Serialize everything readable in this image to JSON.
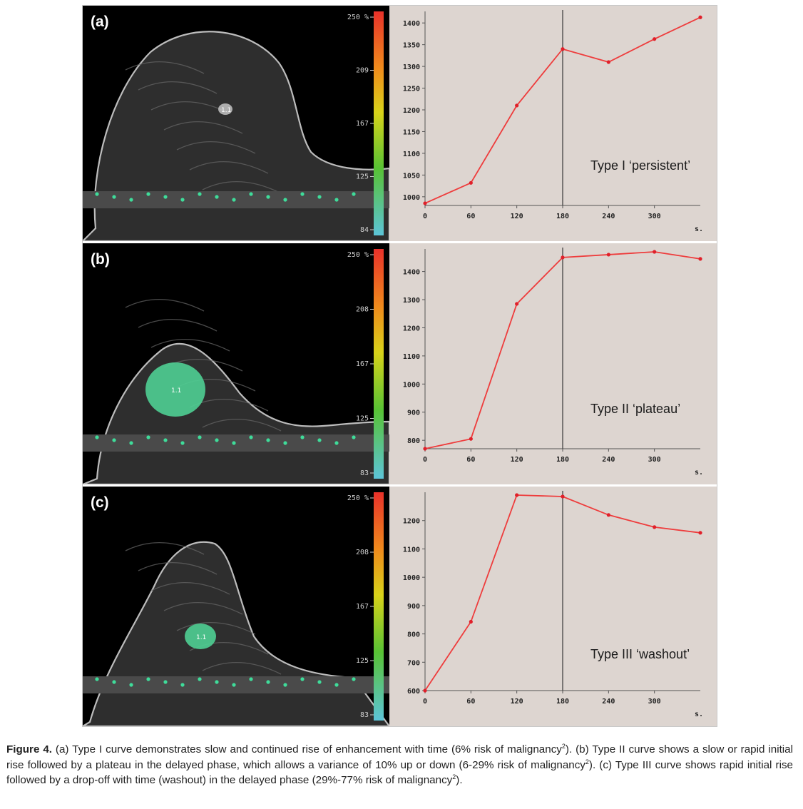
{
  "figure": {
    "panels": [
      {
        "label": "(a)",
        "type_label": "Type I ‘persistent’",
        "colorbar_ticks": [
          "250 %",
          "209",
          "167",
          "125",
          "84"
        ],
        "enhanced_fraction": 0.02,
        "lesion_marker": "1.1"
      },
      {
        "label": "(b)",
        "type_label": "Type II ‘plateau’",
        "colorbar_ticks": [
          "250 %",
          "208",
          "167",
          "125",
          "83"
        ],
        "enhanced_fraction": 0.35,
        "lesion_marker": "1.1"
      },
      {
        "label": "(c)",
        "type_label": "Type III ‘washout’",
        "colorbar_ticks": [
          "250 %",
          "208",
          "167",
          "125",
          "83"
        ],
        "enhanced_fraction": 0.2,
        "lesion_marker": "1.1"
      }
    ]
  },
  "chart_data": [
    {
      "type": "line",
      "x": [
        0,
        60,
        120,
        180,
        240,
        300,
        360
      ],
      "y": [
        985,
        1032,
        1210,
        1340,
        1310,
        1363,
        1413
      ],
      "xticks": [
        "0",
        "60",
        "120",
        "180",
        "240",
        "300"
      ],
      "xunit": "s.",
      "yticks": [
        "1000",
        "1050",
        "1100",
        "1150",
        "1200",
        "1250",
        "1300",
        "1350",
        "1400"
      ],
      "xlim": [
        0,
        360
      ],
      "ylim": [
        980,
        1420
      ],
      "marker_x": 180,
      "line_color": "#ee3c3c",
      "annotation": "Type I ‘persistent’"
    },
    {
      "type": "line",
      "x": [
        0,
        60,
        120,
        180,
        240,
        300,
        360
      ],
      "y": [
        770,
        805,
        1285,
        1450,
        1460,
        1470,
        1445
      ],
      "xticks": [
        "0",
        "60",
        "120",
        "180",
        "240",
        "300"
      ],
      "xunit": "s.",
      "yticks": [
        "800",
        "900",
        "1000",
        "1100",
        "1200",
        "1300",
        "1400"
      ],
      "xlim": [
        0,
        360
      ],
      "ylim": [
        770,
        1470
      ],
      "marker_x": 180,
      "line_color": "#ee3c3c",
      "annotation": "Type II ‘plateau’"
    },
    {
      "type": "line",
      "x": [
        0,
        60,
        120,
        180,
        240,
        300,
        360
      ],
      "y": [
        600,
        843,
        1290,
        1285,
        1220,
        1177,
        1157
      ],
      "xticks": [
        "0",
        "60",
        "120",
        "180",
        "240",
        "300"
      ],
      "xunit": "s.",
      "yticks": [
        "600",
        "700",
        "800",
        "900",
        "1000",
        "1100",
        "1200"
      ],
      "xlim": [
        0,
        360
      ],
      "ylim": [
        600,
        1290
      ],
      "marker_x": 180,
      "line_color": "#ee3c3c",
      "annotation": "Type III ‘washout’"
    }
  ],
  "caption": {
    "label": "Figure 4.",
    "text_a": " (a) Type I curve demonstrates slow and continued rise of enhancement with time (6% risk of malignancy",
    "ref_a": "2",
    "text_b": "). (b) Type II curve shows a slow or rapid initial rise followed by a plateau in the delayed phase, which allows a variance of 10% up or down (6-29% risk of malignancy",
    "ref_b": "2",
    "text_c": "). (c) Type III curve shows rapid initial rise followed by a drop-off with time (washout) in the delayed phase (29%-77% risk of malignancy",
    "ref_c": "2",
    "text_end": ")."
  }
}
